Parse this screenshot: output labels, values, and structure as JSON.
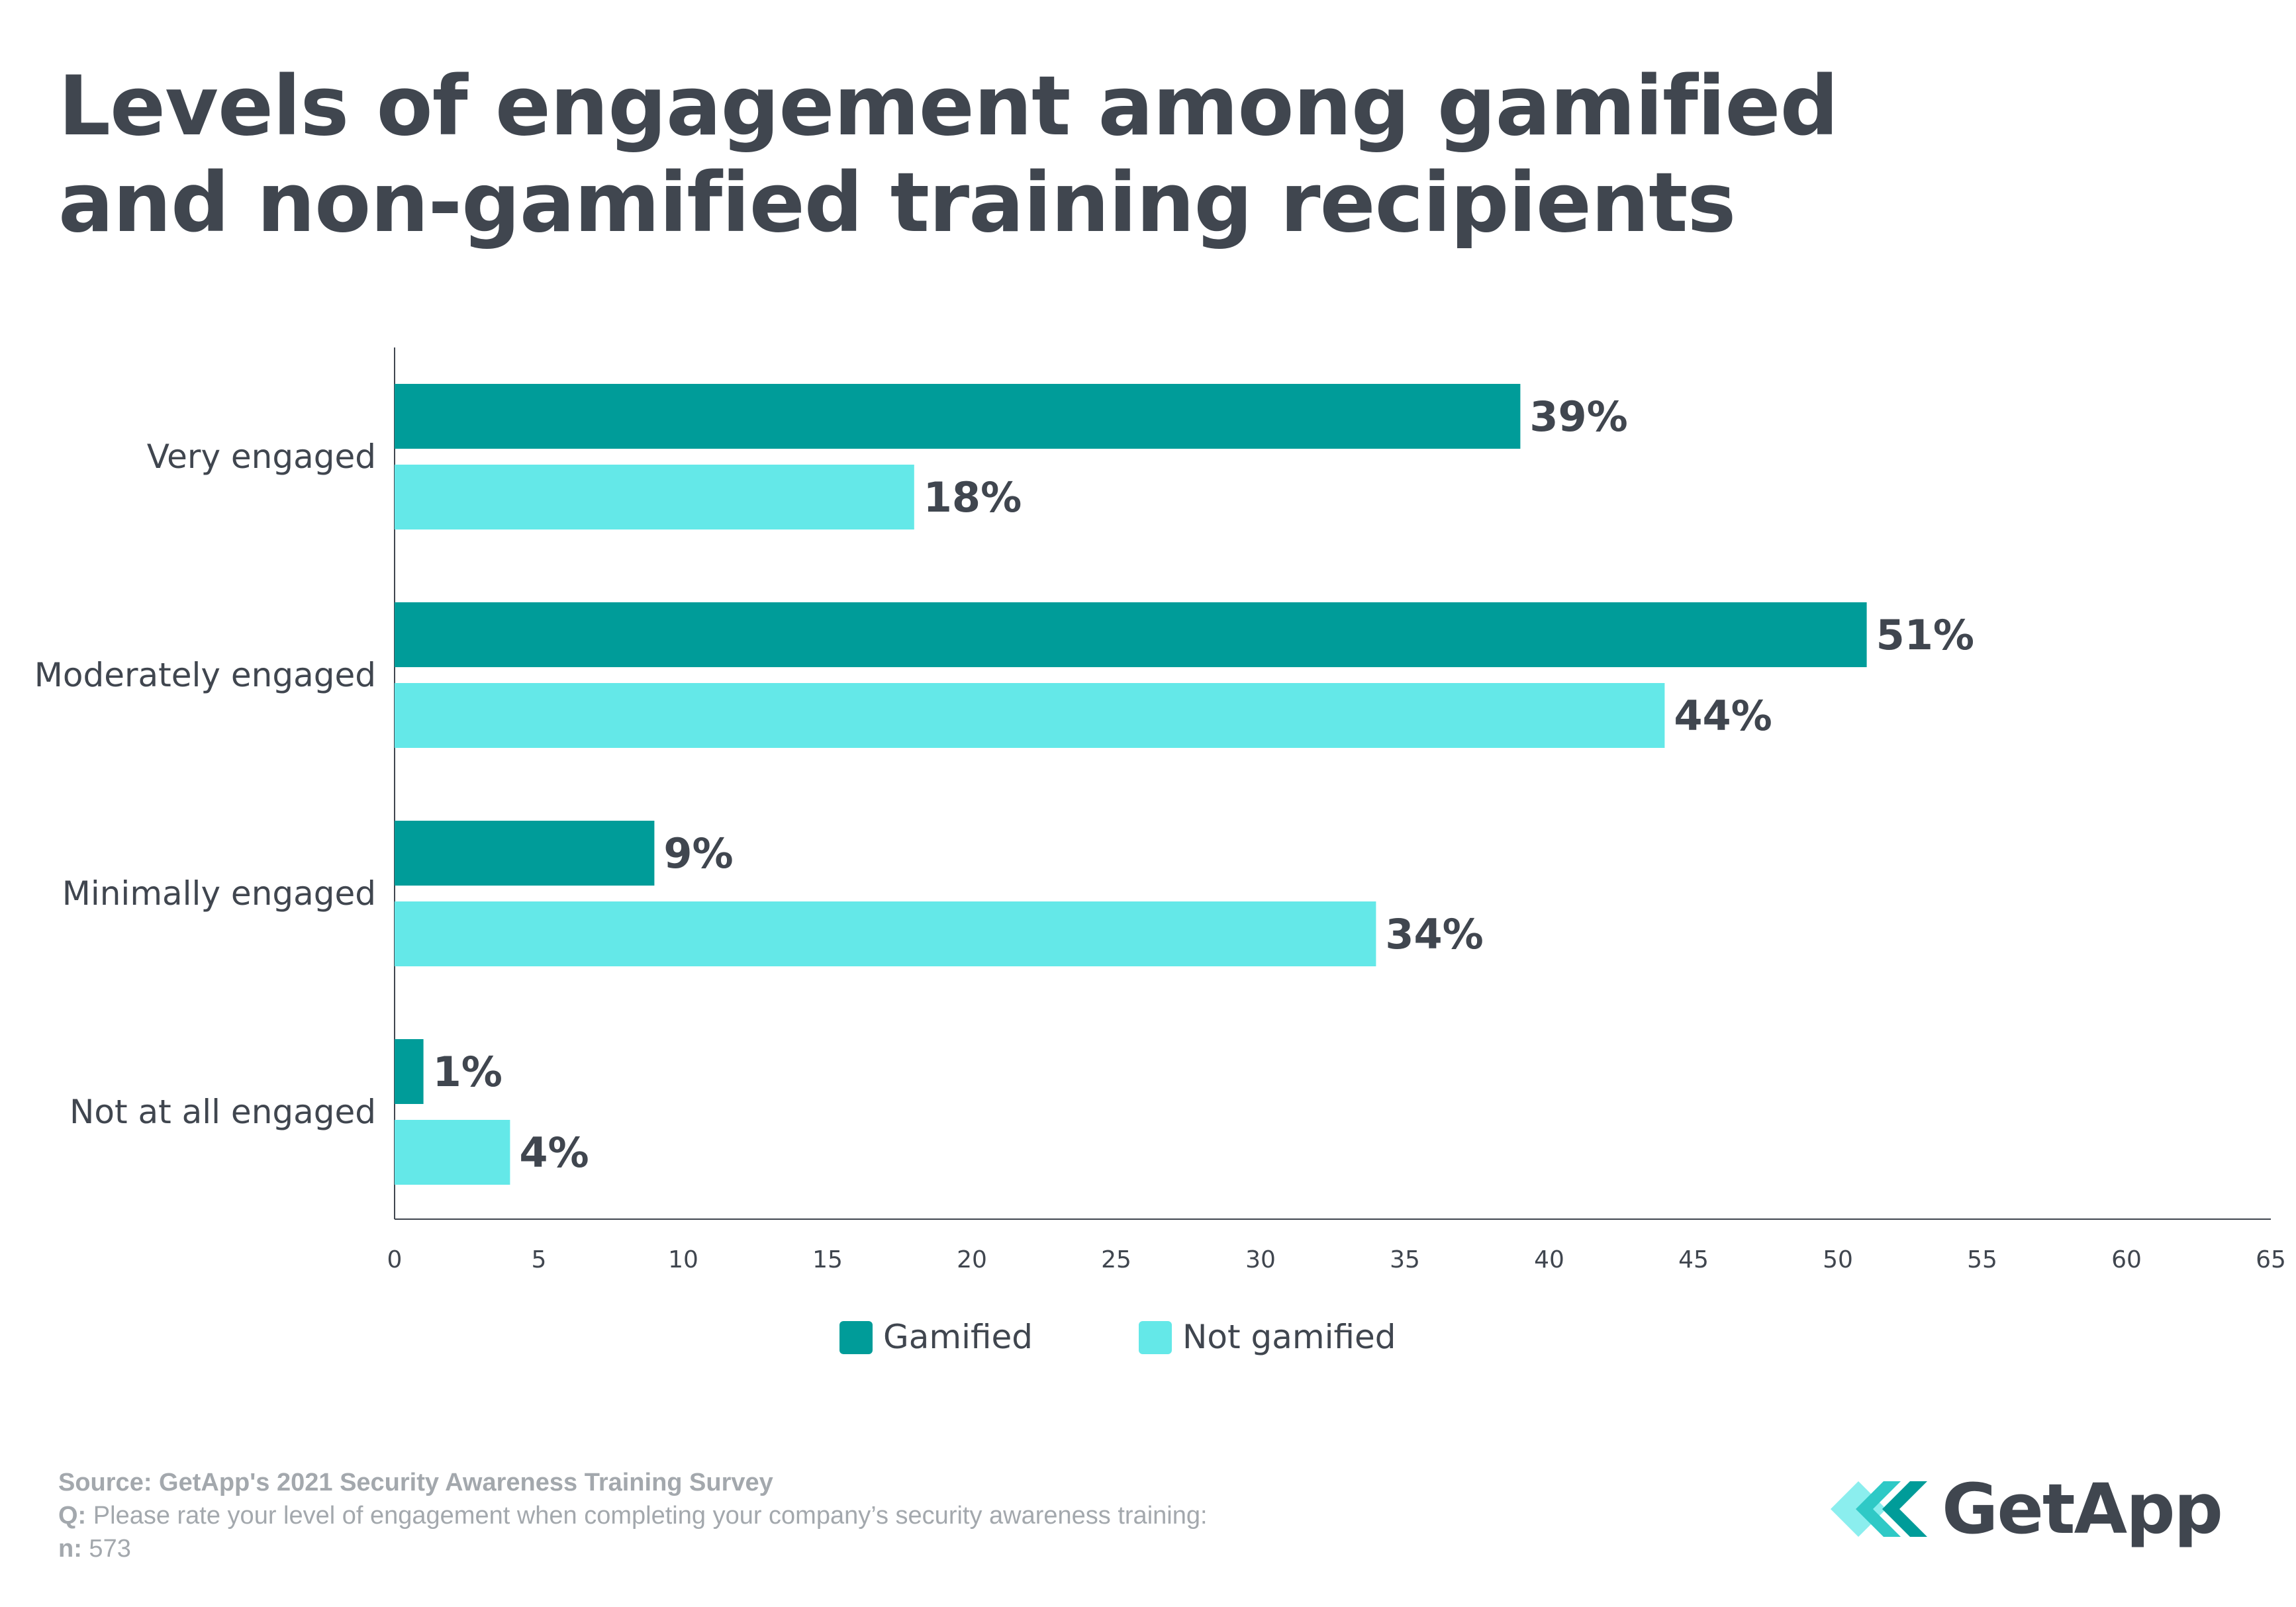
{
  "title_line1": "Levels of engagement among gamified",
  "title_line2": "and non-gamified training recipients",
  "colors": {
    "gamified": "#009c99",
    "not_gamified": "#64e8e8",
    "text": "#40464f",
    "footer": "#a3a8ad"
  },
  "chart_data": {
    "type": "bar",
    "orientation": "horizontal",
    "categories": [
      "Very engaged",
      "Moderately engaged",
      "Minimally engaged",
      "Not at all engaged"
    ],
    "series": [
      {
        "name": "Gamified",
        "values": [
          39,
          51,
          9,
          1
        ],
        "labels": [
          "39%",
          "51%",
          "9%",
          "1%"
        ]
      },
      {
        "name": "Not gamified",
        "values": [
          18,
          44,
          34,
          4
        ],
        "labels": [
          "18%",
          "44%",
          "34%",
          "4%"
        ]
      }
    ],
    "xlim": [
      0,
      65
    ],
    "xticks": [
      0,
      5,
      10,
      15,
      20,
      25,
      30,
      35,
      40,
      45,
      50,
      55,
      60,
      65
    ],
    "grid": false,
    "legend_placement": "bottom"
  },
  "footer": {
    "source": "Source: GetApp's 2021 Security Awareness Training Survey",
    "q_label": "Q:",
    "q_text": " Please rate your level of engagement when completing your company’s security awareness training:",
    "n_label": "n:",
    "n_text": " 573"
  },
  "logo": {
    "text": "GetApp",
    "icon": "getapp-chevrons-icon"
  }
}
